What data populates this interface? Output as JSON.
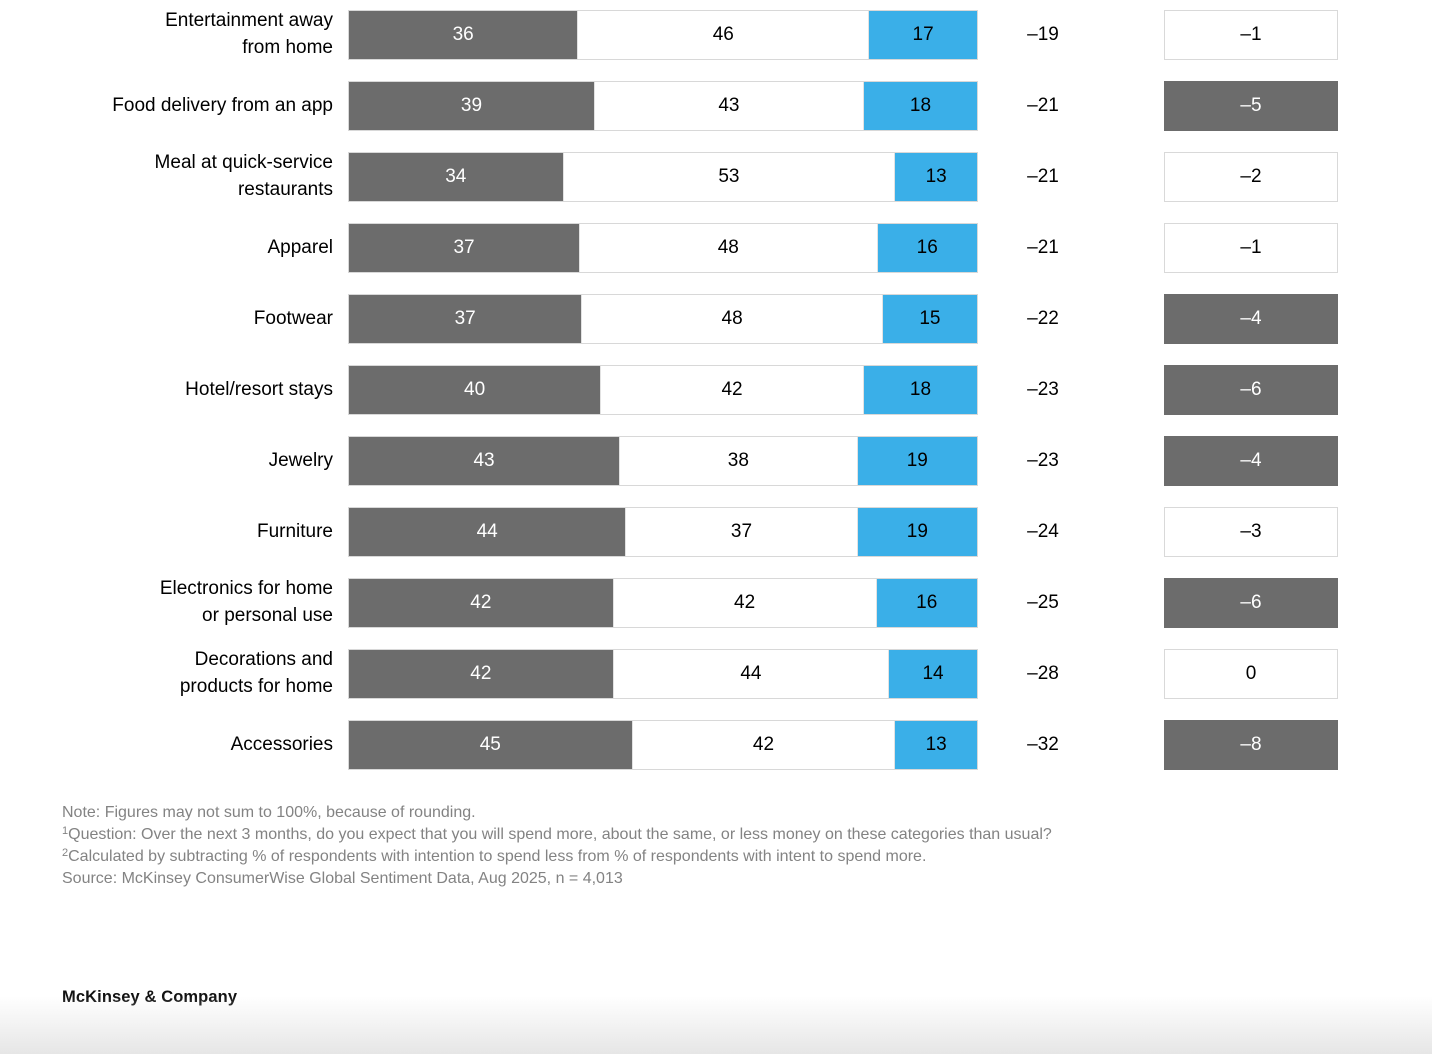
{
  "chart_data": {
    "type": "bar",
    "subtype": "horizontal-stacked-100-percent",
    "unit": "%",
    "legend_position": "none",
    "grid": false,
    "colors": {
      "dark_segment": "#6c6c6c",
      "white_segment": "#ffffff",
      "blue_segment": "#3aafe8"
    },
    "columns": [
      "category",
      "dark_segment_value",
      "white_segment_value",
      "blue_segment_value",
      "net_intent",
      "change_box_value"
    ],
    "rows": [
      {
        "label": "Entertainment away\nfrom home",
        "dark": 36,
        "white": 46,
        "blue": 17,
        "net_value": -19,
        "net_label": "–19",
        "change_value": -1,
        "change_label": "–1",
        "change_style": "outline"
      },
      {
        "label": "Food delivery from an app",
        "dark": 39,
        "white": 43,
        "blue": 18,
        "net_value": -21,
        "net_label": "–21",
        "change_value": -5,
        "change_label": "–5",
        "change_style": "filled"
      },
      {
        "label": "Meal at quick-service\nrestaurants",
        "dark": 34,
        "white": 53,
        "blue": 13,
        "net_value": -21,
        "net_label": "–21",
        "change_value": -2,
        "change_label": "–2",
        "change_style": "outline"
      },
      {
        "label": "Apparel",
        "dark": 37,
        "white": 48,
        "blue": 16,
        "net_value": -21,
        "net_label": "–21",
        "change_value": -1,
        "change_label": "–1",
        "change_style": "outline"
      },
      {
        "label": "Footwear",
        "dark": 37,
        "white": 48,
        "blue": 15,
        "net_value": -22,
        "net_label": "–22",
        "change_value": -4,
        "change_label": "–4",
        "change_style": "filled"
      },
      {
        "label": "Hotel/resort stays",
        "dark": 40,
        "white": 42,
        "blue": 18,
        "net_value": -23,
        "net_label": "–23",
        "change_value": -6,
        "change_label": "–6",
        "change_style": "filled"
      },
      {
        "label": "Jewelry",
        "dark": 43,
        "white": 38,
        "blue": 19,
        "net_value": -23,
        "net_label": "–23",
        "change_value": -4,
        "change_label": "–4",
        "change_style": "filled"
      },
      {
        "label": "Furniture",
        "dark": 44,
        "white": 37,
        "blue": 19,
        "net_value": -24,
        "net_label": "–24",
        "change_value": -3,
        "change_label": "–3",
        "change_style": "outline"
      },
      {
        "label": "Electronics for home\nor personal use",
        "dark": 42,
        "white": 42,
        "blue": 16,
        "net_value": -25,
        "net_label": "–25",
        "change_value": -6,
        "change_label": "–6",
        "change_style": "filled"
      },
      {
        "label": "Decorations and\nproducts for home",
        "dark": 42,
        "white": 44,
        "blue": 14,
        "net_value": -28,
        "net_label": "–28",
        "change_value": 0,
        "change_label": "0",
        "change_style": "outline"
      },
      {
        "label": "Accessories",
        "dark": 45,
        "white": 42,
        "blue": 13,
        "net_value": -32,
        "net_label": "–32",
        "change_value": -8,
        "change_label": "–8",
        "change_style": "filled"
      }
    ]
  },
  "notes": {
    "line1": "Note: Figures may not sum to 100%, because of rounding.",
    "line2_sup": "1",
    "line2": "Question: Over the next 3 months, do you expect that you will spend more, about the same, or less money on these categories than usual?",
    "line3_sup": "2",
    "line3": "Calculated by subtracting % of respondents with intention to spend less from % of respondents with intent to spend more.",
    "line4": "Source: McKinsey ConsumerWise Global Sentiment Data, Aug 2025, n = 4,013"
  },
  "brand": "McKinsey & Company"
}
